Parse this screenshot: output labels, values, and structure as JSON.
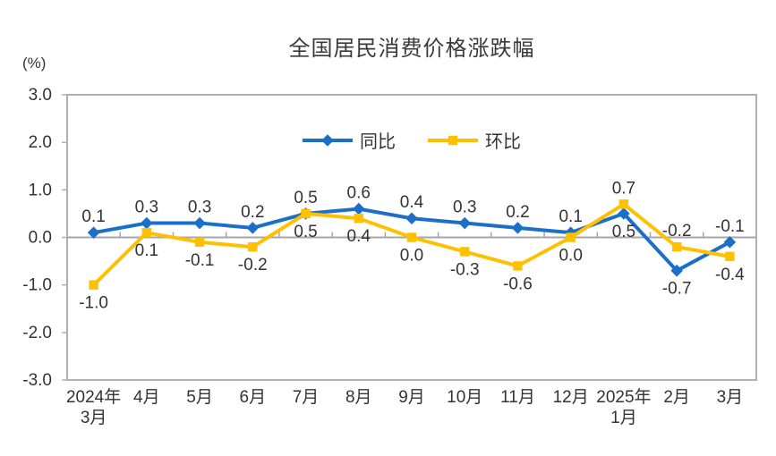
{
  "chart_data": {
    "type": "line",
    "title": "全国居民消费价格涨跌幅",
    "unit": "(%)",
    "categories": [
      "2024年\n3月",
      "4月",
      "5月",
      "6月",
      "7月",
      "8月",
      "9月",
      "10月",
      "11月",
      "12月",
      "2025年\n1月",
      "2月",
      "3月"
    ],
    "series": [
      {
        "key": "yoy",
        "name": "同比",
        "color": "#1B6FC8",
        "marker": "diamond",
        "values": [
          0.1,
          0.3,
          0.3,
          0.2,
          0.5,
          0.6,
          0.4,
          0.3,
          0.2,
          0.1,
          0.5,
          -0.7,
          -0.1
        ],
        "label_positions": [
          "above",
          "above",
          "above",
          "above",
          "above",
          "above",
          "above",
          "above",
          "above",
          "above",
          "below",
          "below",
          "above"
        ]
      },
      {
        "key": "mom",
        "name": "环比",
        "color": "#FFC000",
        "marker": "square",
        "values": [
          -1.0,
          0.1,
          -0.1,
          -0.2,
          0.5,
          0.4,
          0.0,
          -0.3,
          -0.6,
          0.0,
          0.7,
          -0.2,
          -0.4
        ],
        "label_positions": [
          "below",
          "below",
          "below",
          "below",
          "below",
          "below",
          "below",
          "below",
          "below",
          "below",
          "above",
          "above",
          "below"
        ]
      }
    ],
    "ylim": [
      -3.0,
      3.0
    ],
    "yticks": [
      3.0,
      2.0,
      1.0,
      0.0,
      -1.0,
      -2.0,
      -3.0
    ],
    "grid": false,
    "zero_line": true,
    "legend_position": "top-center",
    "axis_color": "#B0B0B0",
    "zero_line_color": "#A6A6A6",
    "text_color": "#333333"
  }
}
